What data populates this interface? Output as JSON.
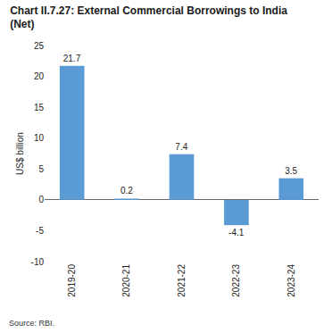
{
  "chart_data": {
    "type": "bar",
    "title": "Chart II.7.27: External Commercial Borrowings to India (Net)",
    "y_label": "US$ billion",
    "categories": [
      "2019-20",
      "2020-21",
      "2021-22",
      "2022-23",
      "2023-24"
    ],
    "values": [
      21.7,
      0.2,
      7.4,
      -4.1,
      3.5
    ],
    "color": "#5b9bd5",
    "ylim": [
      -10,
      25
    ],
    "yticks": [
      -10,
      -5,
      0,
      5,
      10,
      15,
      20,
      25
    ],
    "grid": false,
    "data_labels": true,
    "annotations": [
      "Source: RBI."
    ]
  }
}
